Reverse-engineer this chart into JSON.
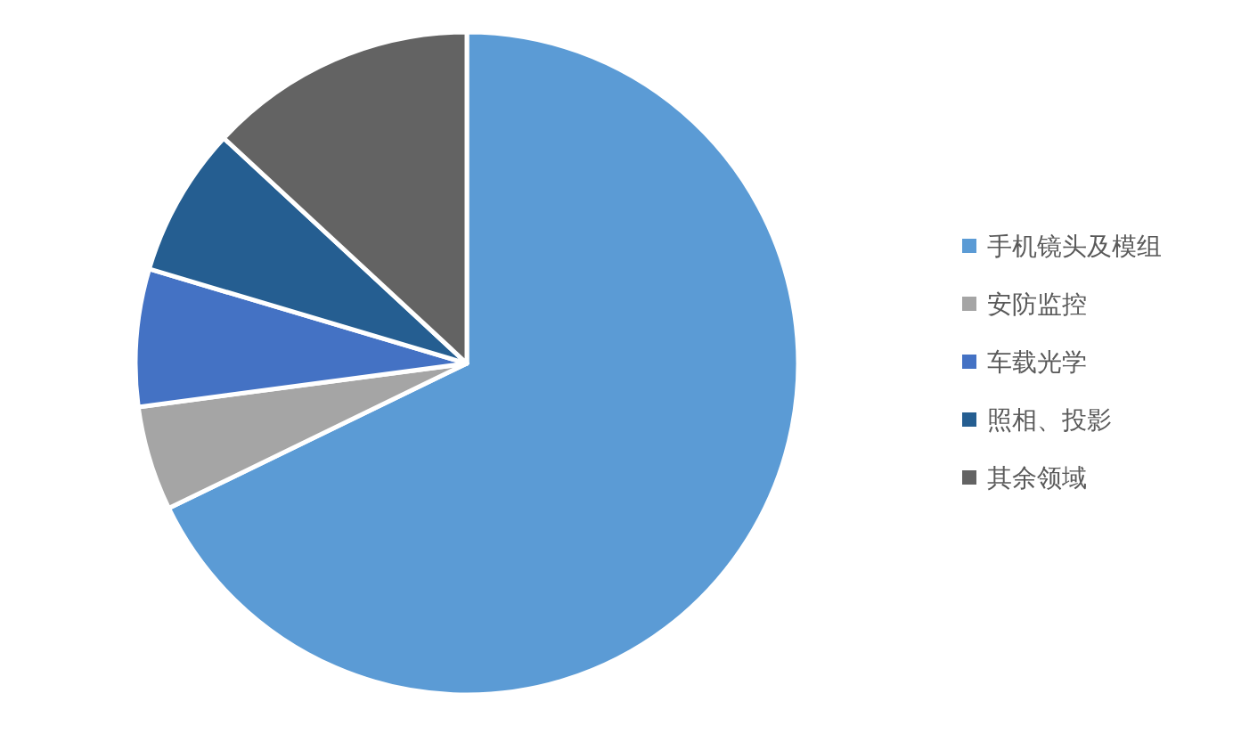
{
  "chart_data": {
    "type": "pie",
    "categories": [
      "手机镜头及模组",
      "安防监控",
      "车载光学",
      "照相、投影",
      "其余领域"
    ],
    "values": [
      67.8,
      5.1,
      6.7,
      7.3,
      13.1
    ],
    "colors": [
      "#5b9bd5",
      "#a5a5a5",
      "#4472c4",
      "#255e91",
      "#636363"
    ],
    "legend": "right"
  }
}
